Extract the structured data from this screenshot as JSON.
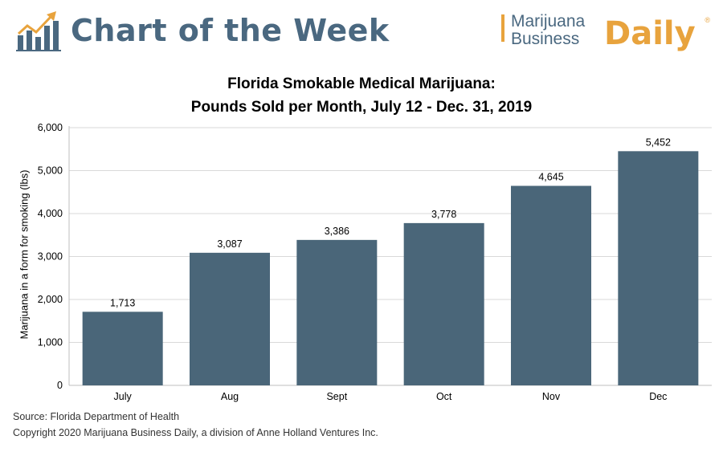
{
  "banner": {
    "title": "Chart of the Week",
    "brand_line1": "Marijuana",
    "brand_line2": "Business",
    "brand_daily": "Daily",
    "brand_mark": "®",
    "logo_icon": "bar-chart-trend-arrow-icon",
    "title_color": "#4a6880",
    "accent_color": "#e8a33d"
  },
  "chart_data": {
    "type": "bar",
    "title": "Florida Smokable Medical Marijuana:",
    "subtitle": "Pounds Sold per Month, July 12 - Dec. 31, 2019",
    "ylabel": "Marijuana in a form for smoking (lbs)",
    "xlabel": "",
    "categories": [
      "July",
      "Aug",
      "Sept",
      "Oct",
      "Nov",
      "Dec"
    ],
    "values": [
      1713,
      3087,
      3386,
      3778,
      4645,
      5452
    ],
    "data_labels": [
      "1,713",
      "3,087",
      "3,386",
      "3,778",
      "4,645",
      "5,452"
    ],
    "ylim": [
      0,
      6000
    ],
    "yticks": [
      0,
      1000,
      2000,
      3000,
      4000,
      5000,
      6000
    ],
    "ytick_labels": [
      "0",
      "1,000",
      "2,000",
      "3,000",
      "4,000",
      "5,000",
      "6,000"
    ],
    "grid": true,
    "bar_color": "#4a6679"
  },
  "footer": {
    "source": "Source: Florida Department of Health",
    "copyright": "Copyright 2020 Marijuana Business Daily, a division of Anne Holland Ventures Inc."
  }
}
